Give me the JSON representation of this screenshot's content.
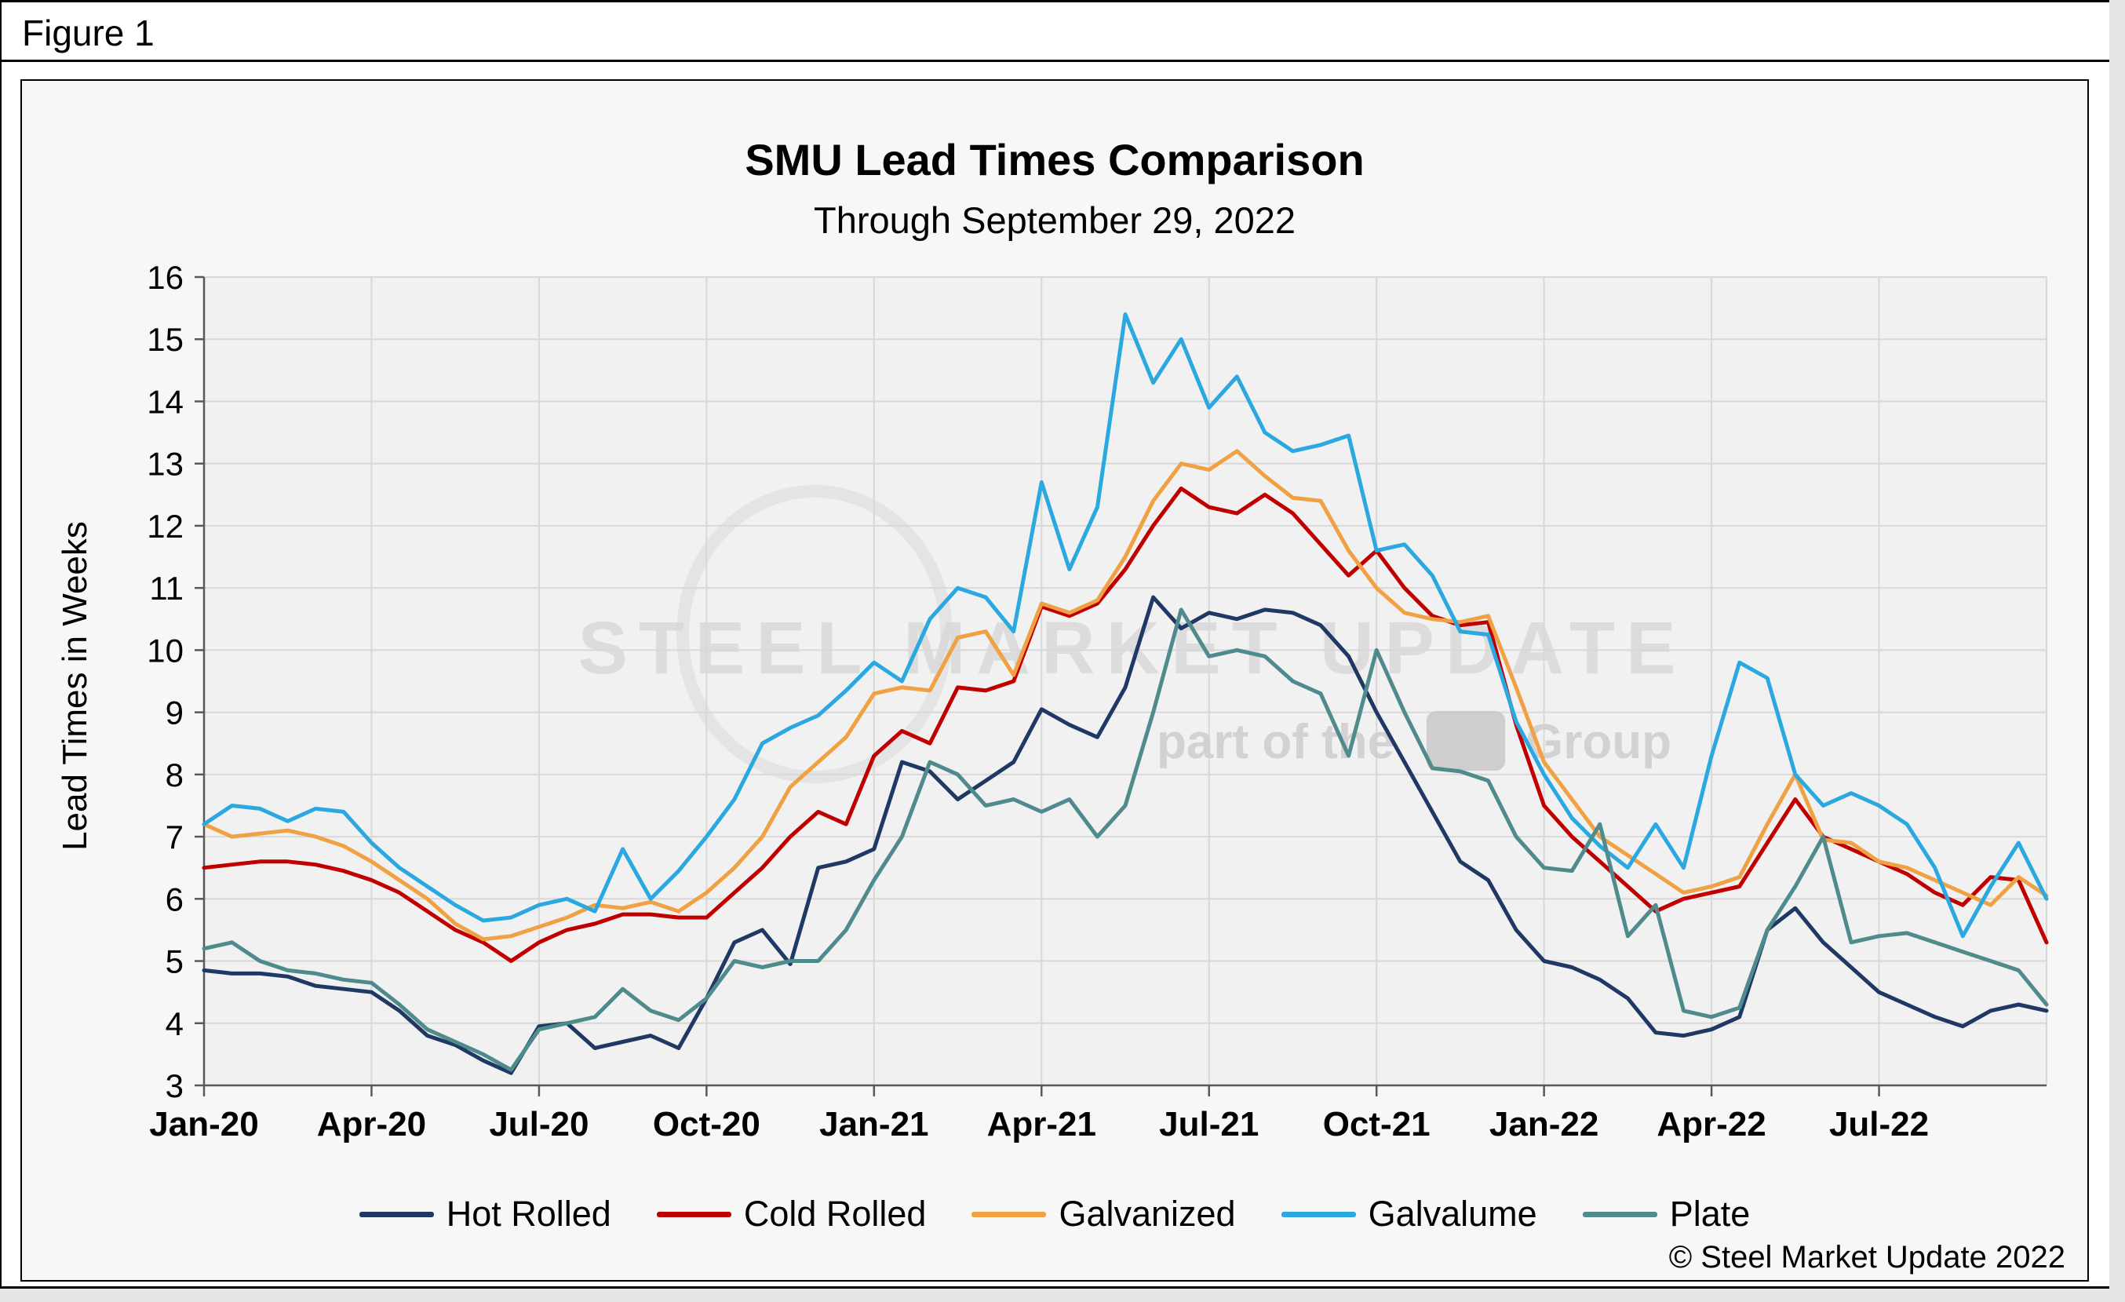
{
  "figure_label": "Figure 1",
  "title": "SMU Lead Times Comparison",
  "subtitle": "Through September 29, 2022",
  "ylabel": "Lead Times in Weeks",
  "copyright": "© Steel Market Update 2022",
  "watermark": {
    "line1": "STEEL MARKET UPDATE",
    "line2_prefix": "part of the",
    "line2_suffix": "Group"
  },
  "colors": {
    "hot_rolled": "#1F3864",
    "cold_rolled": "#C00000",
    "galvanized": "#EFA143",
    "galvalume": "#2BA8E0",
    "plate": "#4F8A8D",
    "grid": "#D8D8D8",
    "axis": "#595959",
    "plot_bg": "#F1F1F1",
    "watermark_gray": "#D9D9D9"
  },
  "chart_data": {
    "type": "line",
    "title": "SMU Lead Times Comparison",
    "subtitle": "Through September 29, 2022",
    "xlabel": "",
    "ylabel": "Lead Times in Weeks",
    "x_unit": "months since Jan-2020, biweekly points",
    "x_start": 0,
    "x_step": 0.5,
    "xlim": [
      0,
      33
    ],
    "ylim": [
      3,
      16
    ],
    "y_ticks": [
      3,
      4,
      5,
      6,
      7,
      8,
      9,
      10,
      11,
      12,
      13,
      14,
      15,
      16
    ],
    "x_ticks": [
      {
        "pos": 0,
        "label": "Jan-20"
      },
      {
        "pos": 3,
        "label": "Apr-20"
      },
      {
        "pos": 6,
        "label": "Jul-20"
      },
      {
        "pos": 9,
        "label": "Oct-20"
      },
      {
        "pos": 12,
        "label": "Jan-21"
      },
      {
        "pos": 15,
        "label": "Apr-21"
      },
      {
        "pos": 18,
        "label": "Jul-21"
      },
      {
        "pos": 21,
        "label": "Oct-21"
      },
      {
        "pos": 24,
        "label": "Jan-22"
      },
      {
        "pos": 27,
        "label": "Apr-22"
      },
      {
        "pos": 30,
        "label": "Jul-22"
      }
    ],
    "grid": true,
    "legend_position": "bottom",
    "series": [
      {
        "name": "Hot Rolled",
        "color": "#1F3864",
        "values": [
          4.85,
          4.8,
          4.8,
          4.75,
          4.6,
          4.55,
          4.5,
          4.2,
          3.8,
          3.65,
          3.4,
          3.2,
          3.95,
          4.0,
          3.6,
          3.7,
          3.8,
          3.6,
          4.4,
          5.3,
          5.5,
          4.95,
          6.5,
          6.6,
          6.8,
          8.2,
          8.05,
          7.6,
          7.9,
          8.2,
          9.05,
          8.8,
          8.6,
          9.4,
          10.85,
          10.35,
          10.6,
          10.5,
          10.65,
          10.6,
          10.4,
          9.9,
          9.0,
          8.2,
          7.4,
          6.6,
          6.3,
          5.5,
          5.0,
          4.9,
          4.7,
          4.4,
          3.85,
          3.8,
          3.9,
          4.1,
          5.5,
          5.85,
          5.3,
          4.9,
          4.5,
          4.3,
          4.1,
          3.95,
          4.2,
          4.3,
          4.2
        ]
      },
      {
        "name": "Cold Rolled",
        "color": "#C00000",
        "values": [
          6.5,
          6.55,
          6.6,
          6.6,
          6.55,
          6.45,
          6.3,
          6.1,
          5.8,
          5.5,
          5.3,
          5.0,
          5.3,
          5.5,
          5.6,
          5.75,
          5.75,
          5.7,
          5.7,
          6.1,
          6.5,
          7.0,
          7.4,
          7.2,
          8.3,
          8.7,
          8.5,
          9.4,
          9.35,
          9.5,
          10.7,
          10.55,
          10.75,
          11.3,
          12.0,
          12.6,
          12.3,
          12.2,
          12.5,
          12.2,
          11.7,
          11.2,
          11.6,
          11.0,
          10.55,
          10.4,
          10.45,
          8.8,
          7.5,
          7.0,
          6.6,
          6.2,
          5.8,
          6.0,
          6.1,
          6.2,
          6.9,
          7.6,
          7.0,
          6.8,
          6.6,
          6.4,
          6.1,
          5.9,
          6.35,
          6.3,
          5.3
        ]
      },
      {
        "name": "Galvanized",
        "color": "#EFA143",
        "values": [
          7.2,
          7.0,
          7.05,
          7.1,
          7.0,
          6.85,
          6.6,
          6.3,
          6.0,
          5.6,
          5.35,
          5.4,
          5.55,
          5.7,
          5.9,
          5.85,
          5.95,
          5.8,
          6.1,
          6.5,
          7.0,
          7.8,
          8.2,
          8.6,
          9.3,
          9.4,
          9.35,
          10.2,
          10.3,
          9.6,
          10.75,
          10.6,
          10.8,
          11.5,
          12.4,
          13.0,
          12.9,
          13.2,
          12.8,
          12.45,
          12.4,
          11.6,
          11.0,
          10.6,
          10.5,
          10.45,
          10.55,
          9.4,
          8.2,
          7.6,
          7.0,
          6.7,
          6.4,
          6.1,
          6.2,
          6.35,
          7.2,
          8.0,
          6.95,
          6.9,
          6.6,
          6.5,
          6.3,
          6.1,
          5.9,
          6.35,
          6.05
        ]
      },
      {
        "name": "Galvalume",
        "color": "#2BA8E0",
        "values": [
          7.2,
          7.5,
          7.45,
          7.25,
          7.45,
          7.4,
          6.9,
          6.5,
          6.2,
          5.9,
          5.65,
          5.7,
          5.9,
          6.0,
          5.8,
          6.8,
          6.0,
          6.45,
          7.0,
          7.6,
          8.5,
          8.75,
          8.95,
          9.35,
          9.8,
          9.5,
          10.5,
          11.0,
          10.85,
          10.3,
          12.7,
          11.3,
          12.3,
          15.4,
          14.3,
          15.0,
          13.9,
          14.4,
          13.5,
          13.2,
          13.3,
          13.45,
          11.6,
          11.7,
          11.2,
          10.3,
          10.25,
          8.85,
          8.0,
          7.3,
          6.85,
          6.5,
          7.2,
          6.5,
          8.3,
          9.8,
          9.55,
          8.0,
          7.5,
          7.7,
          7.5,
          7.2,
          6.5,
          5.4,
          6.2,
          6.9,
          6.0
        ]
      },
      {
        "name": "Plate",
        "color": "#4F8A8D",
        "values": [
          5.2,
          5.3,
          5.0,
          4.85,
          4.8,
          4.7,
          4.65,
          4.3,
          3.9,
          3.7,
          3.5,
          3.25,
          3.9,
          4.0,
          4.1,
          4.55,
          4.2,
          4.05,
          4.4,
          5.0,
          4.9,
          5.0,
          5.0,
          5.5,
          6.3,
          7.0,
          8.2,
          8.0,
          7.5,
          7.6,
          7.4,
          7.6,
          7.0,
          7.5,
          9.0,
          10.65,
          9.9,
          10.0,
          9.9,
          9.5,
          9.3,
          8.3,
          10.0,
          9.0,
          8.1,
          8.05,
          7.9,
          7.0,
          6.5,
          6.45,
          7.2,
          5.4,
          5.9,
          4.2,
          4.1,
          4.25,
          5.5,
          6.2,
          7.0,
          5.3,
          5.4,
          5.45,
          5.3,
          5.15,
          5.0,
          4.85,
          4.3
        ]
      }
    ]
  }
}
